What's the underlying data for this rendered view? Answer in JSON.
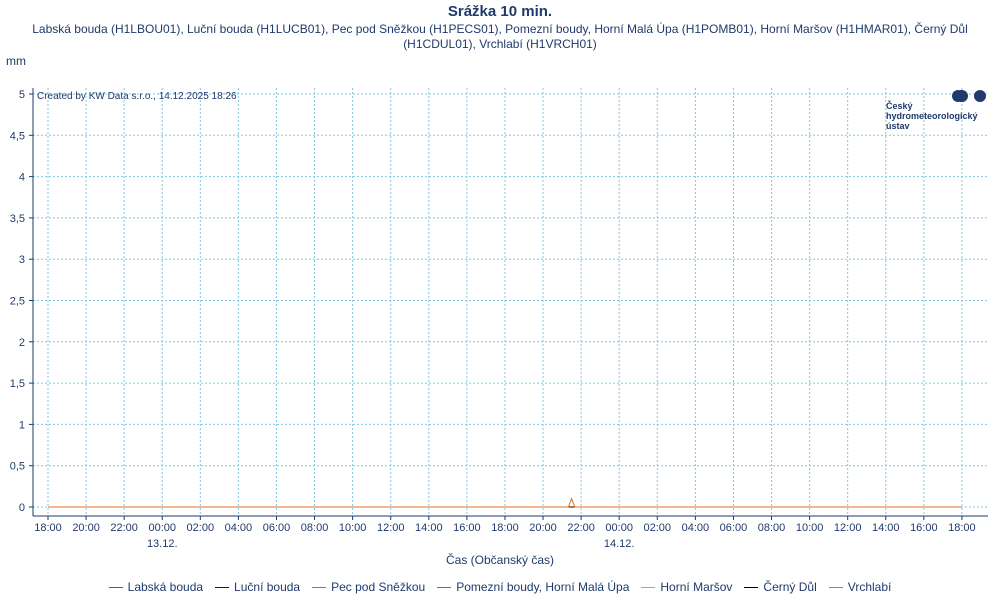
{
  "chart_data": {
    "type": "line",
    "title": "Srážka 10 min.",
    "subtitle": "Labská bouda (H1LBOU01), Luční bouda (H1LUCB01), Pec pod Sněžkou (H1PECS01), Pomezní boudy, Horní Malá Úpa (H1POMB01), Horní Maršov (H1HMAR01), Černý Důl (H1CDUL01), Vrchlabí (H1VRCH01)",
    "ylabel": "mm",
    "xlabel": "Čas (Občanský čas)",
    "credit": "Created by KW Data s.r.o., 14.12.2025 18:26",
    "ylim": [
      0,
      5
    ],
    "y_ticks": [
      "0",
      "0,5",
      "1",
      "1,5",
      "2",
      "2,5",
      "3",
      "3,5",
      "4",
      "4,5",
      "5"
    ],
    "x_ticks": [
      "18:00",
      "20:00",
      "22:00",
      "00:00",
      "02:00",
      "04:00",
      "06:00",
      "08:00",
      "10:00",
      "12:00",
      "14:00",
      "16:00",
      "18:00",
      "20:00",
      "22:00",
      "00:00",
      "02:00",
      "04:00",
      "06:00",
      "08:00",
      "10:00",
      "12:00",
      "14:00",
      "16:00",
      "18:00"
    ],
    "date_labels": [
      {
        "label": "13.12.",
        "tick_index": 3
      },
      {
        "label": "14.12.",
        "tick_index": 15
      }
    ],
    "grid": true,
    "legend_position": "bottom",
    "series": [
      {
        "name": "Labská bouda",
        "color": "#d62728",
        "points": [
          {
            "t": 0,
            "v": 0
          },
          {
            "t": 48,
            "v": 0
          }
        ]
      },
      {
        "name": "Luční bouda",
        "color": "#1a1a1a",
        "points": [
          {
            "t": 0,
            "v": 0
          },
          {
            "t": 48,
            "v": 0
          }
        ]
      },
      {
        "name": "Pec pod Sněžkou",
        "color": "#2ca089",
        "points": [
          {
            "t": 0,
            "v": 0
          },
          {
            "t": 48,
            "v": 0
          }
        ]
      },
      {
        "name": "Pomezní boudy, Horní Malá Úpa",
        "color": "#c2409a",
        "points": [
          {
            "t": 0,
            "v": 0
          },
          {
            "t": 48,
            "v": 0
          }
        ]
      },
      {
        "name": "Horní Maršov",
        "color": "#d4b000",
        "points": [
          {
            "t": 0,
            "v": 0
          },
          {
            "t": 48,
            "v": 0
          }
        ]
      },
      {
        "name": "Černý Důl",
        "color": "#000000",
        "points": [
          {
            "t": 0,
            "v": 0
          },
          {
            "t": 48,
            "v": 0
          }
        ]
      },
      {
        "name": "Vrchlabí",
        "color": "#e07020",
        "points": [
          {
            "t": 0,
            "v": 0
          },
          {
            "t": 27.33,
            "v": 0
          },
          {
            "t": 27.5,
            "v": 0.1
          },
          {
            "t": 27.67,
            "v": 0
          },
          {
            "t": 48,
            "v": 0
          }
        ]
      }
    ]
  },
  "logo": {
    "lines": [
      "Český",
      "hydrometeorologický",
      "ústav"
    ]
  },
  "colors": {
    "text": "#1f3a6b",
    "grid": "#7ec8e3",
    "axis": "#1f3a6b"
  }
}
